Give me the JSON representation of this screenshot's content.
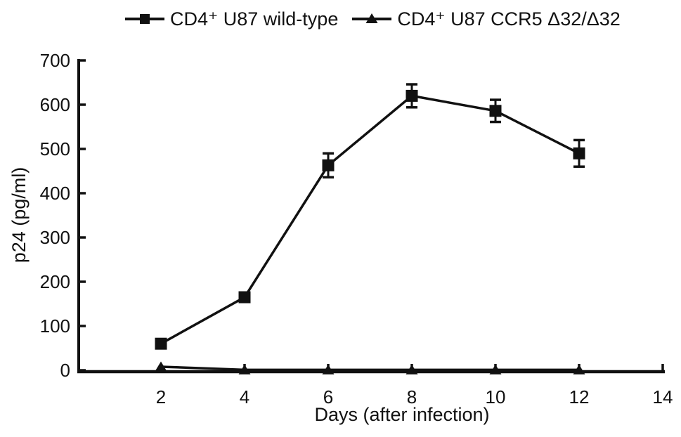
{
  "figure": {
    "background": "#ffffff",
    "ink_color": "#111111"
  },
  "legend": {
    "position": "top",
    "items": [
      {
        "marker_icon": "square-marker-icon",
        "label": "CD4⁺ U87 wild-type"
      },
      {
        "marker_icon": "triangle-marker-icon",
        "label": "CD4⁺ U87 CCR5 Δ32/Δ32"
      }
    ]
  },
  "chart_data": {
    "type": "line",
    "x": [
      2,
      4,
      6,
      8,
      10,
      12
    ],
    "series": [
      {
        "name": "CD4⁺ U87 wild-type",
        "marker": "square",
        "values": [
          60,
          165,
          463,
          620,
          586,
          490
        ],
        "errors": [
          0,
          0,
          27,
          26,
          25,
          30
        ]
      },
      {
        "name": "CD4⁺ U87 CCR5 Δ32/Δ32",
        "marker": "triangle",
        "values": [
          8,
          1,
          1,
          1,
          1,
          1
        ],
        "errors": [
          0,
          0,
          0,
          0,
          0,
          0
        ]
      }
    ],
    "title": "",
    "xlabel": "Days (after infection)",
    "ylabel": "p24 (pg/ml)",
    "xlim": [
      0,
      14
    ],
    "ylim": [
      0,
      700
    ],
    "x_ticks": [
      2,
      4,
      6,
      8,
      10,
      12,
      14
    ],
    "y_ticks": [
      0,
      100,
      200,
      300,
      400,
      500,
      600,
      700
    ],
    "grid": false,
    "legend_position": "top-center",
    "tick_direction": "in"
  }
}
